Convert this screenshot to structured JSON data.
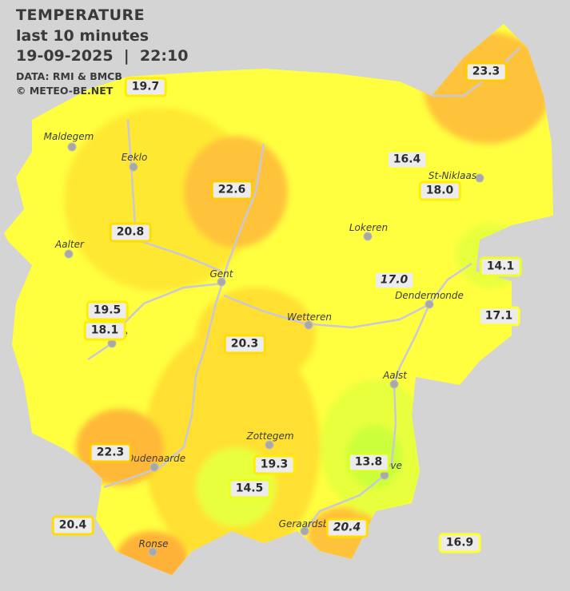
{
  "header": {
    "title": "TEMPERATURE",
    "subtitle": "last 10 minutes",
    "datetime": "19-09-2025  |  22:10",
    "source": "DATA: RMI & BMCB",
    "copyright": "© METEO-BE.NET"
  },
  "colors": {
    "background": "#d4d4d4",
    "yellow": "#ffff40",
    "light_orange": "#ffe030",
    "orange": "#ffc23a",
    "dark_orange": "#ffb238",
    "yellow_green": "#e8ff3c",
    "green": "#ccff3a",
    "rivers": "#c8c8d8"
  },
  "cities": [
    {
      "name": "Maldegem"
    },
    {
      "name": "Eeklo"
    },
    {
      "name": "Aalter"
    },
    {
      "name": "Gent"
    },
    {
      "name": "Lokeren"
    },
    {
      "name": "St-Niklaas"
    },
    {
      "name": "Dendermonde"
    },
    {
      "name": "Wetteren"
    },
    {
      "name": "Aalst"
    },
    {
      "name": "Zottegem"
    },
    {
      "name": "Oudenaarde"
    },
    {
      "name": "ove"
    },
    {
      "name": "Geraardsberg"
    },
    {
      "name": "Ronse"
    },
    {
      "name": "e"
    }
  ],
  "readings": [
    {
      "value": "19.7",
      "border": "#ffee00"
    },
    {
      "value": "23.3",
      "border": "#ffcc00"
    },
    {
      "value": "16.4",
      "border": "#ffff30"
    },
    {
      "value": "22.6",
      "border": "#ffcc00"
    },
    {
      "value": "18.0",
      "border": "#ffee00"
    },
    {
      "value": "20.8",
      "border": "#ffdd00"
    },
    {
      "value": "14.1",
      "border": "#eeff20"
    },
    {
      "value": "17.0",
      "border": "#ffff30",
      "italic": true
    },
    {
      "value": "19.5",
      "border": "#ffee00"
    },
    {
      "value": "17.1",
      "border": "#ffff30"
    },
    {
      "value": "18.1",
      "border": "#ffee00"
    },
    {
      "value": "20.3",
      "border": "#ffdd00"
    },
    {
      "value": "22.3",
      "border": "#ffcc00"
    },
    {
      "value": "13.8",
      "border": "#ddff20"
    },
    {
      "value": "19.3",
      "border": "#ffee00"
    },
    {
      "value": "14.5",
      "border": "#eeff20"
    },
    {
      "value": "20.4",
      "border": "#ffdd00"
    },
    {
      "value": "20.4",
      "border": "#ffdd00",
      "italic": true
    },
    {
      "value": "16.9",
      "border": "#ffff30"
    }
  ]
}
